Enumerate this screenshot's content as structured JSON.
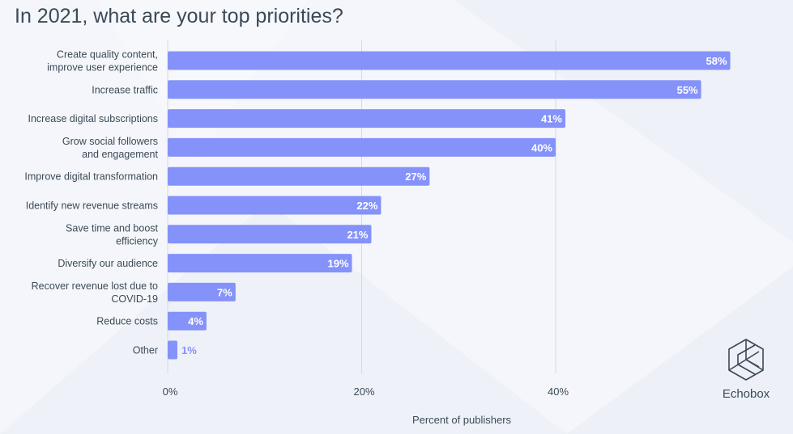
{
  "chart_data": {
    "type": "bar",
    "orientation": "horizontal",
    "title": "In 2021, what are your top priorities?",
    "xlabel": "Percent of publishers",
    "ylabel": "",
    "xlim": [
      0,
      0.6
    ],
    "xticks": [
      {
        "value": 0,
        "label": "0%"
      },
      {
        "value": 0.2,
        "label": "20%"
      },
      {
        "value": 0.4,
        "label": "40%"
      }
    ],
    "grid": true,
    "categories": [
      [
        "Create quality content,",
        "improve user experience"
      ],
      [
        "Increase traffic"
      ],
      [
        "Increase digital subscriptions"
      ],
      [
        "Grow social followers",
        "and engagement"
      ],
      [
        "Improve digital transformation"
      ],
      [
        "Identify new revenue streams"
      ],
      [
        "Save time and boost",
        "efficiency"
      ],
      [
        "Diversify our audience"
      ],
      [
        "Recover revenue lost due to",
        "COVID-19"
      ],
      [
        "Reduce costs"
      ],
      [
        "Other"
      ]
    ],
    "values": [
      0.58,
      0.55,
      0.41,
      0.4,
      0.27,
      0.22,
      0.21,
      0.19,
      0.07,
      0.04,
      0.01
    ],
    "value_labels": [
      "58%",
      "55%",
      "41%",
      "40%",
      "27%",
      "22%",
      "21%",
      "19%",
      "7%",
      "4%",
      "1%"
    ],
    "colors": {
      "bar": "#8592fa",
      "grid": "#d5d9e2",
      "label_inside": "#ffffff",
      "label_outside": "#8592fa",
      "text": "#3c4a57"
    }
  },
  "brand": {
    "name": "Echobox",
    "icon": "echobox-logo-icon"
  }
}
